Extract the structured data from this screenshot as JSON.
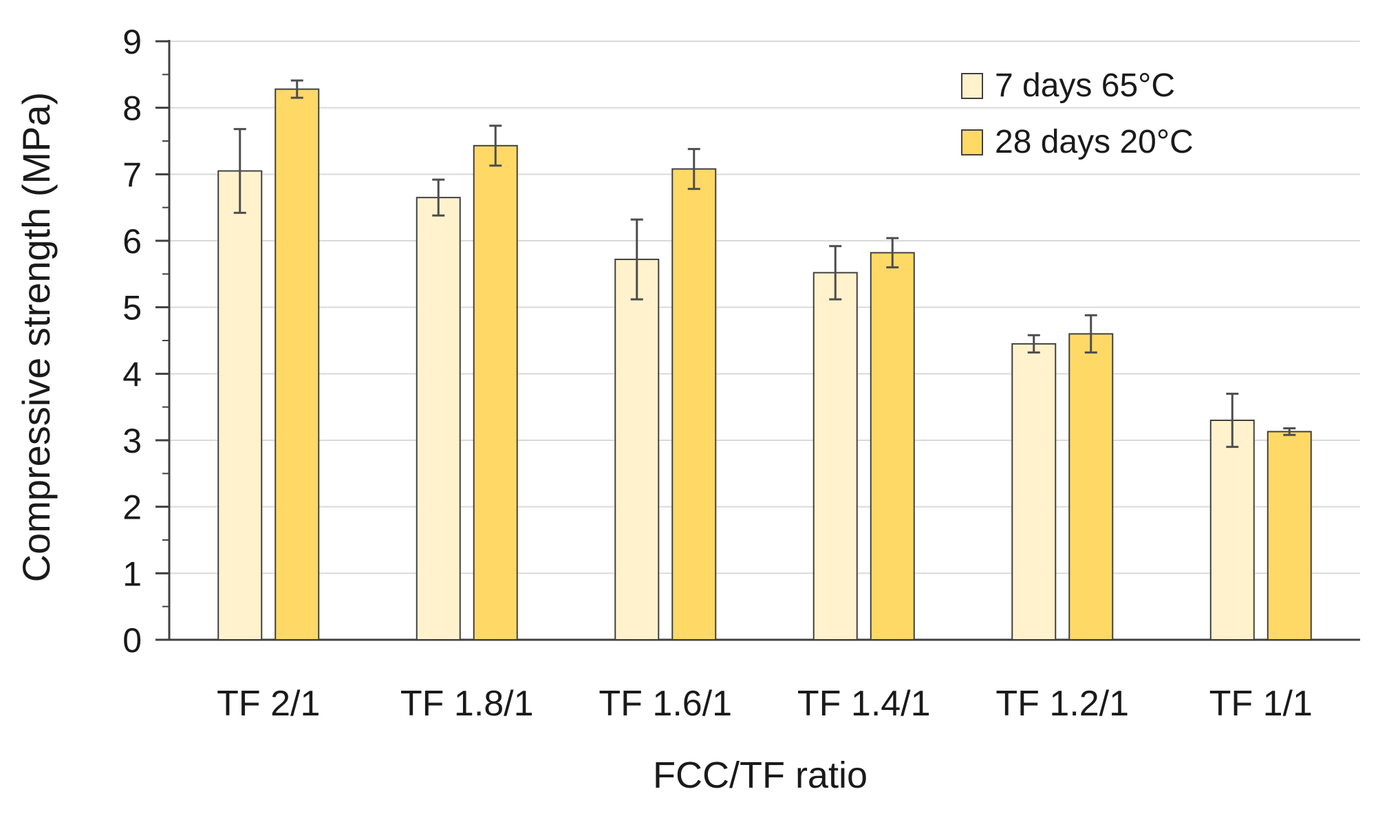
{
  "chart_data": {
    "type": "bar",
    "title": "",
    "xlabel": "FCC/TF ratio",
    "ylabel": "Compressive strength (MPa)",
    "ylim": [
      0,
      9
    ],
    "yticks": [
      0,
      1,
      2,
      3,
      4,
      5,
      6,
      7,
      8,
      9
    ],
    "minor_tick_step": 0.5,
    "grid": true,
    "legend_position": "top-right",
    "categories": [
      "TF 2/1",
      "TF 1.8/1",
      "TF 1.6/1",
      "TF 1.4/1",
      "TF 1.2/1",
      "TF 1/1"
    ],
    "series": [
      {
        "name": "7 days 65°C",
        "color": "#FFF2CC",
        "values": [
          7.05,
          6.65,
          5.72,
          5.52,
          4.45,
          3.3
        ],
        "errors": [
          0.63,
          0.27,
          0.6,
          0.4,
          0.13,
          0.4
        ]
      },
      {
        "name": "28 days 20°C",
        "color": "#FFD966",
        "values": [
          8.28,
          7.43,
          7.08,
          5.82,
          4.6,
          3.13
        ],
        "errors": [
          0.13,
          0.3,
          0.3,
          0.22,
          0.28,
          0.05
        ]
      }
    ]
  }
}
